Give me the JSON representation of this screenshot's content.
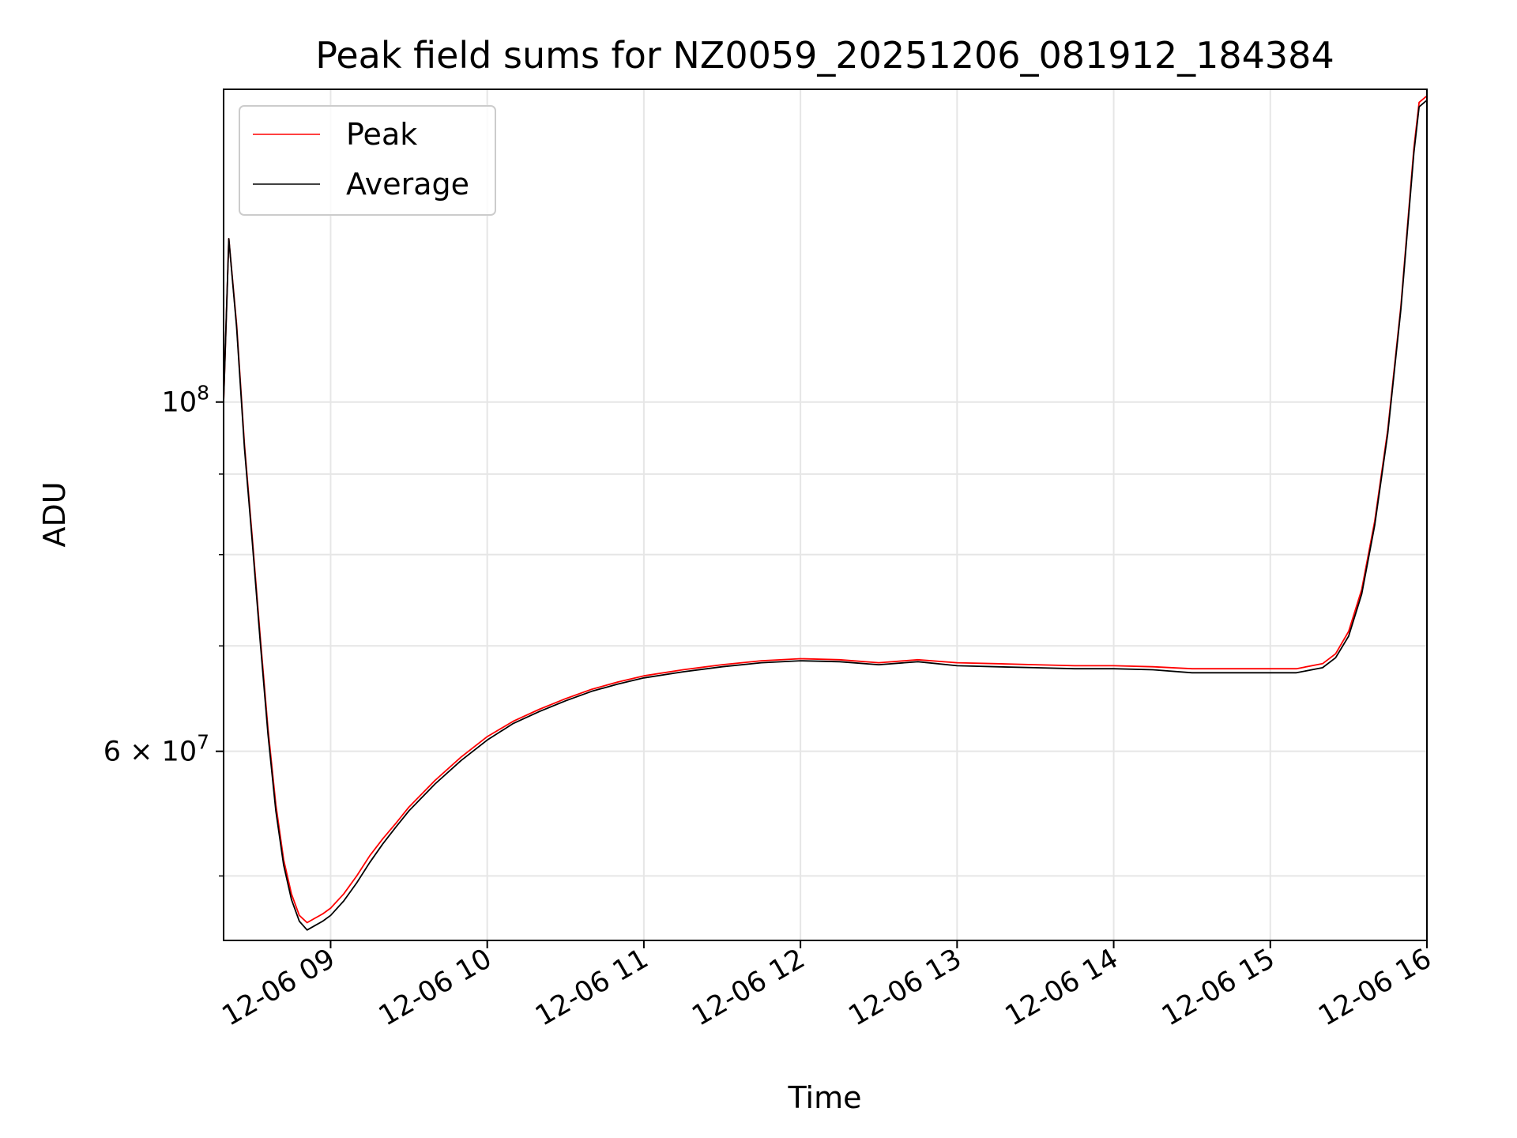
{
  "chart_data": {
    "type": "line",
    "title": "Peak field sums for NZ0059_20251206_081912_184384",
    "xlabel": "Time",
    "ylabel": "ADU",
    "yscale": "log",
    "xlim": [
      "2025-12-06 08:19",
      "2025-12-06 16:00"
    ],
    "ylim": [
      45500000,
      158000000
    ],
    "grid": true,
    "legend": "upper left",
    "x_ticks": [
      "12-06 09",
      "12-06 10",
      "12-06 11",
      "12-06 12",
      "12-06 13",
      "12-06 14",
      "12-06 15",
      "12-06 16"
    ],
    "y_ticks": [
      {
        "label_base": "10",
        "label_exp": "8",
        "label_pre": "",
        "value": 100000000
      },
      {
        "label_base": "10",
        "label_exp": "7",
        "label_pre": "6 × ",
        "value": 60000000
      }
    ],
    "series": [
      {
        "name": "Peak",
        "color": "#ff0000",
        "x": [
          "2025-12-06 08:19",
          "2025-12-06 08:21",
          "2025-12-06 08:24",
          "2025-12-06 08:27",
          "2025-12-06 08:30",
          "2025-12-06 08:33",
          "2025-12-06 08:36",
          "2025-12-06 08:39",
          "2025-12-06 08:42",
          "2025-12-06 08:45",
          "2025-12-06 08:48",
          "2025-12-06 08:51",
          "2025-12-06 08:54",
          "2025-12-06 08:57",
          "2025-12-06 09:00",
          "2025-12-06 09:05",
          "2025-12-06 09:10",
          "2025-12-06 09:15",
          "2025-12-06 09:20",
          "2025-12-06 09:25",
          "2025-12-06 09:30",
          "2025-12-06 09:40",
          "2025-12-06 09:50",
          "2025-12-06 10:00",
          "2025-12-06 10:10",
          "2025-12-06 10:20",
          "2025-12-06 10:30",
          "2025-12-06 10:40",
          "2025-12-06 10:50",
          "2025-12-06 11:00",
          "2025-12-06 11:15",
          "2025-12-06 11:30",
          "2025-12-06 11:45",
          "2025-12-06 12:00",
          "2025-12-06 12:15",
          "2025-12-06 12:30",
          "2025-12-06 12:45",
          "2025-12-06 13:00",
          "2025-12-06 13:15",
          "2025-12-06 13:30",
          "2025-12-06 13:45",
          "2025-12-06 14:00",
          "2025-12-06 14:15",
          "2025-12-06 14:30",
          "2025-12-06 14:45",
          "2025-12-06 15:00",
          "2025-12-06 15:10",
          "2025-12-06 15:20",
          "2025-12-06 15:25",
          "2025-12-06 15:30",
          "2025-12-06 15:35",
          "2025-12-06 15:40",
          "2025-12-06 15:45",
          "2025-12-06 15:50",
          "2025-12-06 15:55",
          "2025-12-06 15:57",
          "2025-12-06 16:00"
        ],
        "y": [
          100000000,
          127000000,
          112000000,
          94000000,
          82000000,
          71000000,
          62000000,
          55500000,
          51200000,
          48700000,
          47200000,
          46700000,
          47000000,
          47300000,
          47700000,
          48700000,
          50000000,
          51500000,
          52800000,
          54000000,
          55300000,
          57500000,
          59500000,
          61300000,
          62700000,
          63800000,
          64800000,
          65700000,
          66400000,
          67000000,
          67600000,
          68100000,
          68500000,
          68700000,
          68600000,
          68300000,
          68600000,
          68300000,
          68200000,
          68100000,
          68000000,
          68000000,
          67900000,
          67700000,
          67700000,
          67700000,
          67700000,
          68200000,
          69200000,
          71500000,
          76000000,
          84000000,
          96000000,
          115000000,
          145000000,
          155000000,
          156500000
        ]
      },
      {
        "name": "Average",
        "color": "#000000",
        "x": [
          "2025-12-06 08:19",
          "2025-12-06 08:21",
          "2025-12-06 08:24",
          "2025-12-06 08:27",
          "2025-12-06 08:30",
          "2025-12-06 08:33",
          "2025-12-06 08:36",
          "2025-12-06 08:39",
          "2025-12-06 08:42",
          "2025-12-06 08:45",
          "2025-12-06 08:48",
          "2025-12-06 08:51",
          "2025-12-06 08:54",
          "2025-12-06 08:57",
          "2025-12-06 09:00",
          "2025-12-06 09:05",
          "2025-12-06 09:10",
          "2025-12-06 09:15",
          "2025-12-06 09:20",
          "2025-12-06 09:25",
          "2025-12-06 09:30",
          "2025-12-06 09:40",
          "2025-12-06 09:50",
          "2025-12-06 10:00",
          "2025-12-06 10:10",
          "2025-12-06 10:20",
          "2025-12-06 10:30",
          "2025-12-06 10:40",
          "2025-12-06 10:50",
          "2025-12-06 11:00",
          "2025-12-06 11:15",
          "2025-12-06 11:30",
          "2025-12-06 11:45",
          "2025-12-06 12:00",
          "2025-12-06 12:15",
          "2025-12-06 12:30",
          "2025-12-06 12:45",
          "2025-12-06 13:00",
          "2025-12-06 13:15",
          "2025-12-06 13:30",
          "2025-12-06 13:45",
          "2025-12-06 14:00",
          "2025-12-06 14:15",
          "2025-12-06 14:30",
          "2025-12-06 14:45",
          "2025-12-06 15:00",
          "2025-12-06 15:10",
          "2025-12-06 15:20",
          "2025-12-06 15:25",
          "2025-12-06 15:30",
          "2025-12-06 15:35",
          "2025-12-06 15:40",
          "2025-12-06 15:45",
          "2025-12-06 15:50",
          "2025-12-06 15:55",
          "2025-12-06 15:57",
          "2025-12-06 16:00"
        ],
        "y": [
          100000000,
          127000000,
          111500000,
          93500000,
          81500000,
          70500000,
          61500000,
          55000000,
          50800000,
          48300000,
          46800000,
          46200000,
          46500000,
          46800000,
          47200000,
          48200000,
          49500000,
          51000000,
          52400000,
          53700000,
          55000000,
          57200000,
          59200000,
          61000000,
          62500000,
          63600000,
          64600000,
          65500000,
          66200000,
          66800000,
          67400000,
          67900000,
          68300000,
          68500000,
          68400000,
          68100000,
          68400000,
          68000000,
          67900000,
          67800000,
          67700000,
          67700000,
          67600000,
          67300000,
          67300000,
          67300000,
          67300000,
          67800000,
          68800000,
          71000000,
          75500000,
          83500000,
          95500000,
          114500000,
          144000000,
          154000000,
          155500000
        ]
      }
    ]
  }
}
